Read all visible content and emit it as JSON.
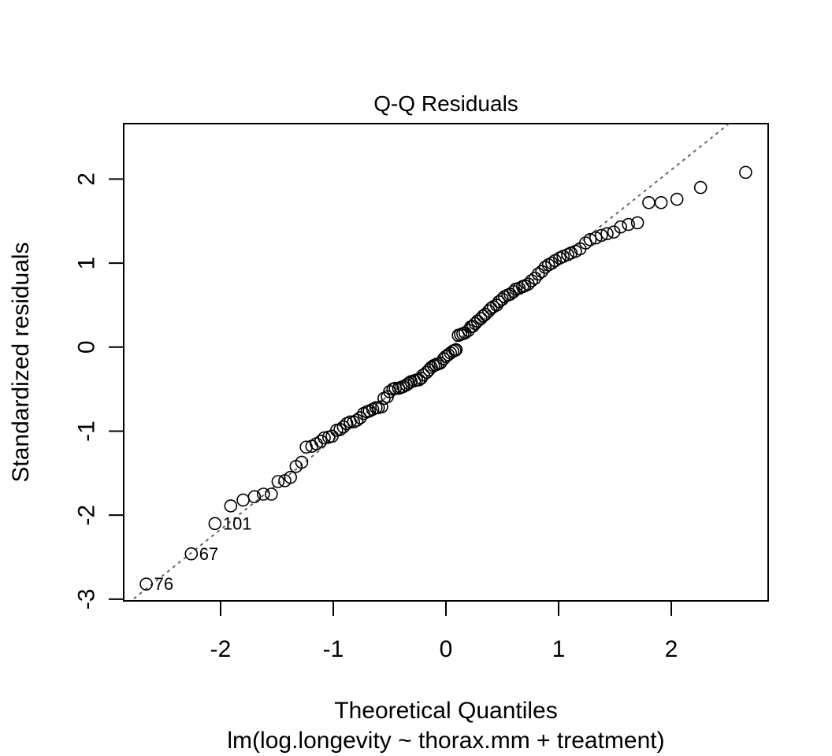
{
  "chart_data": {
    "type": "scatter",
    "title": "Q-Q Residuals",
    "xlabel": "Theoretical Quantiles",
    "subtitle": "lm(log.longevity ~ thorax.mm + treatment)",
    "ylabel": "Standardized residuals",
    "xlim": [
      -2.86,
      2.86
    ],
    "ylim": [
      -3.02,
      2.66
    ],
    "x_ticks": [
      -2,
      -1,
      0,
      1,
      2
    ],
    "x_tick_labels": [
      "-2",
      "-1",
      "0",
      "1",
      "2"
    ],
    "y_ticks": [
      -3,
      -2,
      -1,
      0,
      1,
      2
    ],
    "y_tick_labels": [
      "-3",
      "-2",
      "-1",
      "0",
      "1",
      "2"
    ],
    "grid": false,
    "reference_line": {
      "style": "dotted",
      "color": "#666666",
      "intercept": -0.03,
      "slope": 1.07
    },
    "point_labels": [
      {
        "label": "76",
        "x": -2.66,
        "y": -2.82
      },
      {
        "label": "67",
        "x": -2.26,
        "y": -2.46
      },
      {
        "label": "101",
        "x": -2.05,
        "y": -2.1
      }
    ],
    "points": [
      [
        -2.66,
        -2.82
      ],
      [
        -2.26,
        -2.46
      ],
      [
        -2.05,
        -2.1
      ],
      [
        -1.91,
        -1.89
      ],
      [
        -1.8,
        -1.82
      ],
      [
        -1.7,
        -1.78
      ],
      [
        -1.62,
        -1.75
      ],
      [
        -1.55,
        -1.75
      ],
      [
        -1.49,
        -1.6
      ],
      [
        -1.43,
        -1.59
      ],
      [
        -1.38,
        -1.55
      ],
      [
        -1.33,
        -1.42
      ],
      [
        -1.28,
        -1.37
      ],
      [
        -1.24,
        -1.19
      ],
      [
        -1.19,
        -1.18
      ],
      [
        -1.15,
        -1.15
      ],
      [
        -1.11,
        -1.12
      ],
      [
        -1.08,
        -1.08
      ],
      [
        -1.04,
        -1.07
      ],
      [
        -1.01,
        -1.06
      ],
      [
        -0.97,
        -0.99
      ],
      [
        -0.94,
        -0.98
      ],
      [
        -0.91,
        -0.95
      ],
      [
        -0.88,
        -0.91
      ],
      [
        -0.85,
        -0.89
      ],
      [
        -0.82,
        -0.89
      ],
      [
        -0.79,
        -0.87
      ],
      [
        -0.76,
        -0.84
      ],
      [
        -0.73,
        -0.79
      ],
      [
        -0.7,
        -0.77
      ],
      [
        -0.68,
        -0.76
      ],
      [
        -0.65,
        -0.74
      ],
      [
        -0.62,
        -0.72
      ],
      [
        -0.6,
        -0.72
      ],
      [
        -0.57,
        -0.71
      ],
      [
        -0.55,
        -0.61
      ],
      [
        -0.52,
        -0.59
      ],
      [
        -0.5,
        -0.53
      ],
      [
        -0.47,
        -0.5
      ],
      [
        -0.45,
        -0.49
      ],
      [
        -0.42,
        -0.49
      ],
      [
        -0.4,
        -0.48
      ],
      [
        -0.38,
        -0.47
      ],
      [
        -0.35,
        -0.45
      ],
      [
        -0.33,
        -0.43
      ],
      [
        -0.31,
        -0.41
      ],
      [
        -0.28,
        -0.4
      ],
      [
        -0.26,
        -0.39
      ],
      [
        -0.24,
        -0.39
      ],
      [
        -0.22,
        -0.37
      ],
      [
        -0.2,
        -0.33
      ],
      [
        -0.17,
        -0.3
      ],
      [
        -0.15,
        -0.27
      ],
      [
        -0.13,
        -0.24
      ],
      [
        -0.11,
        -0.22
      ],
      [
        -0.09,
        -0.21
      ],
      [
        -0.07,
        -0.2
      ],
      [
        -0.05,
        -0.19
      ],
      [
        -0.02,
        -0.14
      ],
      [
        0.0,
        -0.11
      ],
      [
        0.02,
        -0.09
      ],
      [
        0.04,
        -0.07
      ],
      [
        0.06,
        -0.05
      ],
      [
        0.08,
        -0.04
      ],
      [
        0.09,
        -0.03
      ],
      [
        0.11,
        0.14
      ],
      [
        0.13,
        0.15
      ],
      [
        0.15,
        0.16
      ],
      [
        0.17,
        0.17
      ],
      [
        0.2,
        0.2
      ],
      [
        0.22,
        0.24
      ],
      [
        0.24,
        0.25
      ],
      [
        0.26,
        0.28
      ],
      [
        0.28,
        0.31
      ],
      [
        0.31,
        0.34
      ],
      [
        0.33,
        0.37
      ],
      [
        0.35,
        0.39
      ],
      [
        0.38,
        0.43
      ],
      [
        0.4,
        0.46
      ],
      [
        0.42,
        0.48
      ],
      [
        0.45,
        0.5
      ],
      [
        0.47,
        0.54
      ],
      [
        0.5,
        0.57
      ],
      [
        0.52,
        0.6
      ],
      [
        0.55,
        0.62
      ],
      [
        0.57,
        0.63
      ],
      [
        0.6,
        0.66
      ],
      [
        0.62,
        0.69
      ],
      [
        0.65,
        0.7
      ],
      [
        0.68,
        0.72
      ],
      [
        0.7,
        0.73
      ],
      [
        0.73,
        0.75
      ],
      [
        0.76,
        0.79
      ],
      [
        0.79,
        0.82
      ],
      [
        0.82,
        0.87
      ],
      [
        0.85,
        0.9
      ],
      [
        0.88,
        0.95
      ],
      [
        0.91,
        0.98
      ],
      [
        0.94,
        1.0
      ],
      [
        0.97,
        1.03
      ],
      [
        1.01,
        1.06
      ],
      [
        1.04,
        1.08
      ],
      [
        1.08,
        1.1
      ],
      [
        1.11,
        1.12
      ],
      [
        1.15,
        1.14
      ],
      [
        1.19,
        1.17
      ],
      [
        1.24,
        1.24
      ],
      [
        1.28,
        1.28
      ],
      [
        1.33,
        1.3
      ],
      [
        1.38,
        1.33
      ],
      [
        1.43,
        1.35
      ],
      [
        1.49,
        1.37
      ],
      [
        1.55,
        1.43
      ],
      [
        1.62,
        1.46
      ],
      [
        1.7,
        1.48
      ],
      [
        1.8,
        1.72
      ],
      [
        1.91,
        1.72
      ],
      [
        2.05,
        1.76
      ],
      [
        2.26,
        1.9
      ],
      [
        2.66,
        2.08
      ]
    ]
  }
}
